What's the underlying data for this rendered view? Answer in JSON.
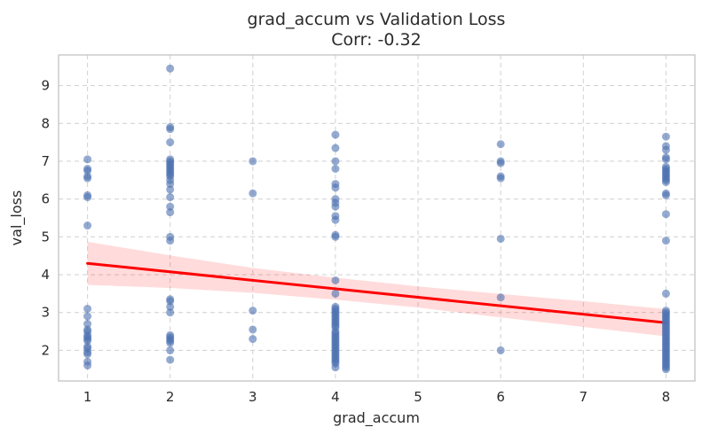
{
  "title": {
    "line1": "grad_accum vs Validation Loss",
    "line2": "Corr: -0.32"
  },
  "axes": {
    "xlabel": "grad_accum",
    "ylabel": "val_loss"
  },
  "chart_data": {
    "type": "scatter",
    "title": "grad_accum vs Validation Loss",
    "subtitle": "Corr: -0.32",
    "correlation": -0.32,
    "xlabel": "grad_accum",
    "ylabel": "val_loss",
    "xlim": [
      0.65,
      8.35
    ],
    "ylim": [
      1.19,
      9.81
    ],
    "x_ticks": [
      1,
      2,
      3,
      4,
      5,
      6,
      7,
      8
    ],
    "y_ticks": [
      2,
      3,
      4,
      5,
      6,
      7,
      8,
      9
    ],
    "grid": {
      "on": true,
      "style": "dashed"
    },
    "legend": {
      "visible": false
    },
    "points": [
      {
        "x": 1,
        "values": [
          7.05,
          6.8,
          6.75,
          6.6,
          6.55,
          6.1,
          6.05,
          5.3,
          3.1,
          2.9,
          2.7,
          2.55,
          2.5,
          2.4,
          2.35,
          2.3,
          2.25,
          2.1,
          2.05,
          1.95,
          1.9,
          1.7,
          1.6
        ]
      },
      {
        "x": 2,
        "values": [
          9.45,
          7.9,
          7.85,
          7.5,
          7.05,
          7.0,
          6.95,
          6.9,
          6.85,
          6.8,
          6.75,
          6.7,
          6.65,
          6.6,
          6.5,
          6.4,
          6.25,
          6.05,
          5.8,
          5.65,
          5.0,
          4.9,
          3.35,
          3.3,
          3.15,
          3.0,
          2.4,
          2.35,
          2.3,
          2.25,
          2.2,
          2.0,
          1.75
        ]
      },
      {
        "x": 3,
        "values": [
          7.0,
          6.15,
          3.05,
          2.55,
          2.3
        ]
      },
      {
        "x": 4,
        "values": [
          7.7,
          7.35,
          7.0,
          6.8,
          6.4,
          6.3,
          6.0,
          5.9,
          5.8,
          5.55,
          5.45,
          5.05,
          5.0,
          3.85,
          3.5,
          3.15,
          3.1,
          3.05,
          3.0,
          2.95,
          2.9,
          2.85,
          2.8,
          2.75,
          2.7,
          2.65,
          2.6,
          2.5,
          2.45,
          2.4,
          2.35,
          2.3,
          2.25,
          2.2,
          2.15,
          2.1,
          2.05,
          2.0,
          1.95,
          1.9,
          1.85,
          1.8,
          1.75,
          1.7,
          1.65,
          1.55
        ]
      },
      {
        "x": 6,
        "values": [
          7.45,
          7.0,
          6.95,
          6.6,
          6.55,
          4.95,
          3.4,
          2.0
        ]
      },
      {
        "x": 8,
        "values": [
          7.65,
          7.4,
          7.3,
          7.1,
          7.05,
          6.85,
          6.8,
          6.75,
          6.7,
          6.65,
          6.6,
          6.55,
          6.5,
          6.45,
          6.15,
          6.1,
          5.6,
          4.9,
          3.5,
          3.05,
          3.0,
          2.95,
          2.9,
          2.85,
          2.8,
          2.75,
          2.7,
          2.65,
          2.6,
          2.55,
          2.5,
          2.45,
          2.4,
          2.35,
          2.3,
          2.25,
          2.2,
          2.15,
          2.1,
          2.05,
          2.0,
          1.95,
          1.9,
          1.85,
          1.8,
          1.75,
          1.7,
          1.65,
          1.6,
          1.55,
          1.5
        ]
      }
    ],
    "regression": {
      "x": [
        1,
        8
      ],
      "y": [
        4.3,
        2.73
      ]
    },
    "ci_band": {
      "x": [
        1,
        2,
        3,
        4,
        5,
        6,
        7,
        8
      ],
      "upper": [
        4.87,
        4.51,
        4.18,
        3.92,
        3.69,
        3.49,
        3.3,
        3.09
      ],
      "lower": [
        3.73,
        3.65,
        3.52,
        3.34,
        3.13,
        2.87,
        2.62,
        2.37
      ]
    },
    "colors": {
      "dot": "#4C72B0",
      "dot_opacity": 0.6,
      "regression_line": "#ff0000",
      "ci_band": "#ff0000",
      "ci_band_opacity": 0.14,
      "grid": "#d5d5d5",
      "spine": "#c3c3c3",
      "text": "#2b2b2b",
      "background": "#ffffff"
    }
  }
}
